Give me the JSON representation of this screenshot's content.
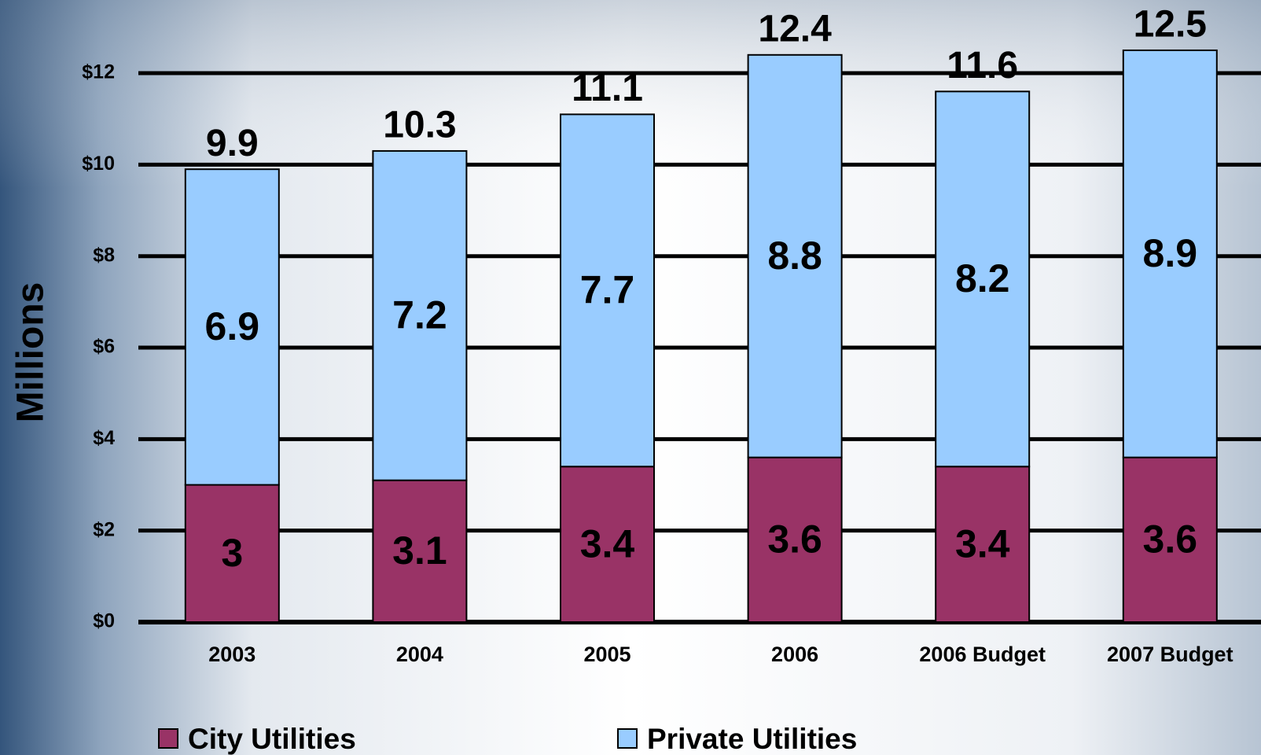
{
  "chart_data": {
    "type": "stacked_bar",
    "y_label": "Millions",
    "categories": [
      "2003",
      "2004",
      "2005",
      "2006",
      "2006 Budget",
      "2007 Budget"
    ],
    "series": [
      {
        "name": "City Utilities",
        "color": "#993366",
        "values": [
          3,
          3.1,
          3.4,
          3.6,
          3.4,
          3.6
        ]
      },
      {
        "name": "Private Utilities",
        "color": "#99ccff",
        "values": [
          6.9,
          7.2,
          7.7,
          8.8,
          8.2,
          8.9
        ]
      }
    ],
    "totals": [
      9.9,
      10.3,
      11.1,
      12.4,
      11.6,
      12.5
    ],
    "ylim": [
      0,
      13.6
    ],
    "yticks": [
      {
        "value": 0,
        "label": "$0"
      },
      {
        "value": 2,
        "label": "$2"
      },
      {
        "value": 4,
        "label": "$4"
      },
      {
        "value": 6,
        "label": "$6"
      },
      {
        "value": 8,
        "label": "$8"
      },
      {
        "value": 10,
        "label": "$10"
      },
      {
        "value": 12,
        "label": "$12"
      }
    ],
    "grid": true
  }
}
